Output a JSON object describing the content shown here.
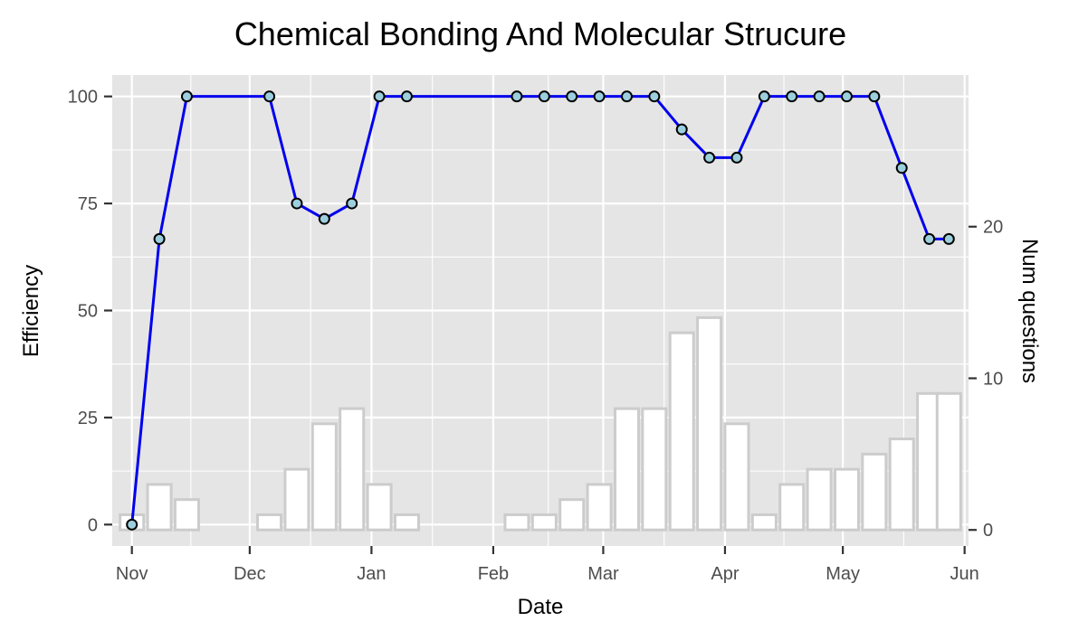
{
  "chart_data": {
    "type": "line",
    "title": "Chemical Bonding And Molecular Strucure",
    "xlabel": "Date",
    "ylabel": "Efficiency",
    "y2label": "Num questions",
    "x_ticks": [
      "Nov",
      "Dec",
      "Jan",
      "Feb",
      "Mar",
      "Apr",
      "May",
      "Jun"
    ],
    "xlim": [
      "2017-10-27",
      "2018-06-02"
    ],
    "y_ticks": [
      0,
      25,
      50,
      75,
      100
    ],
    "ylim": [
      -5,
      105
    ],
    "y2_ticks": [
      0,
      10,
      20
    ],
    "y2lim": [
      -1.06,
      30.0
    ],
    "grid": true,
    "legend": "none",
    "colors": {
      "panel_background": "#e5e5e5",
      "grid": "#ffffff",
      "line": "#0000ee",
      "point_fill": "#9ccfde",
      "point_stroke": "#000000",
      "bar_stroke": "#cccccc",
      "bar_fill": "#ffffff"
    },
    "series": [
      {
        "type": "bar",
        "axis": "right",
        "x": [
          "2017-11-01",
          "2017-11-08",
          "2017-11-15",
          "2017-12-06",
          "2017-12-13",
          "2017-12-20",
          "2017-12-27",
          "2018-01-03",
          "2018-01-10",
          "2018-02-07",
          "2018-02-14",
          "2018-02-21",
          "2018-02-28",
          "2018-03-07",
          "2018-03-14",
          "2018-03-21",
          "2018-03-28",
          "2018-04-04",
          "2018-04-11",
          "2018-04-18",
          "2018-04-25",
          "2018-05-02",
          "2018-05-09",
          "2018-05-16",
          "2018-05-23",
          "2018-05-28"
        ],
        "values": [
          1,
          3,
          2,
          1,
          4,
          7,
          8,
          3,
          1,
          1,
          1,
          2,
          3,
          8,
          8,
          13,
          14,
          7,
          1,
          3,
          4,
          4,
          5,
          6,
          9,
          9
        ]
      },
      {
        "type": "line",
        "axis": "left",
        "x": [
          "2017-11-01",
          "2017-11-08",
          "2017-11-15",
          "2017-12-06",
          "2017-12-13",
          "2017-12-20",
          "2017-12-27",
          "2018-01-03",
          "2018-01-10",
          "2018-02-07",
          "2018-02-14",
          "2018-02-21",
          "2018-02-28",
          "2018-03-07",
          "2018-03-14",
          "2018-03-21",
          "2018-03-28",
          "2018-04-04",
          "2018-04-11",
          "2018-04-18",
          "2018-04-25",
          "2018-05-02",
          "2018-05-09",
          "2018-05-16",
          "2018-05-23",
          "2018-05-28"
        ],
        "values": [
          0,
          66.7,
          100,
          100,
          75,
          71.4,
          75,
          100,
          100,
          100,
          100,
          100,
          100,
          100,
          100,
          92.3,
          85.7,
          85.7,
          100,
          100,
          100,
          100,
          100,
          83.3,
          66.7,
          66.7
        ]
      }
    ]
  }
}
